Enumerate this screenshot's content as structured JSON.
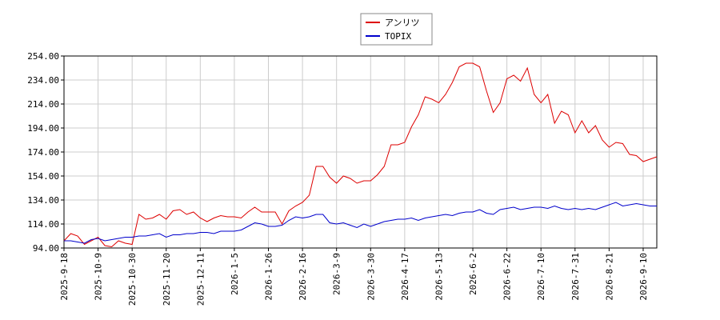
{
  "chart_data": {
    "type": "line",
    "categories": [
      "2025-9-18",
      null,
      null,
      null,
      null,
      "2025-10-9",
      null,
      null,
      null,
      null,
      "2025-10-30",
      null,
      null,
      null,
      null,
      "2025-11-20",
      null,
      null,
      null,
      null,
      "2025-12-11",
      null,
      null,
      null,
      null,
      "2026-1-5",
      null,
      null,
      null,
      null,
      "2026-1-26",
      null,
      null,
      null,
      null,
      "2026-2-16",
      null,
      null,
      null,
      null,
      "2026-3-9",
      null,
      null,
      null,
      null,
      "2026-3-30",
      null,
      null,
      null,
      null,
      "2026-4-17",
      null,
      null,
      null,
      null,
      "2026-5-13",
      null,
      null,
      null,
      null,
      "2026-6-2",
      null,
      null,
      null,
      null,
      "2026-6-22",
      null,
      null,
      null,
      null,
      "2026-7-10",
      null,
      null,
      null,
      null,
      "2026-7-31",
      null,
      null,
      null,
      null,
      "2026-8-21",
      null,
      null,
      null,
      null,
      "2026-9-10",
      null,
      null
    ],
    "series": [
      {
        "name": "アンリツ",
        "color": "#dd0000",
        "values": [
          100,
          106,
          104,
          97,
          100,
          103,
          96,
          95,
          100,
          98,
          97,
          122,
          118,
          119,
          122,
          118,
          125,
          126,
          122,
          124,
          119,
          116,
          119,
          121,
          120,
          120,
          119,
          124,
          128,
          124,
          124,
          124,
          114,
          125,
          129,
          132,
          138,
          162,
          162,
          153,
          148,
          154,
          152,
          148,
          150,
          150,
          155,
          162,
          180,
          180,
          182,
          195,
          205,
          220,
          218,
          215,
          222,
          232,
          245,
          248,
          248,
          245,
          225,
          207,
          215,
          235,
          238,
          233,
          244,
          222,
          215,
          222,
          198,
          208,
          205,
          190,
          200,
          190,
          196,
          184,
          178,
          182,
          181,
          172,
          171,
          166,
          168,
          170
        ]
      },
      {
        "name": "TOPIX",
        "color": "#0000cc",
        "values": [
          100,
          100,
          99,
          98,
          101,
          102,
          100,
          101,
          102,
          103,
          103,
          104,
          104,
          105,
          106,
          103,
          105,
          105,
          106,
          106,
          107,
          107,
          106,
          108,
          108,
          108,
          109,
          112,
          115,
          114,
          112,
          112,
          113,
          117,
          120,
          119,
          120,
          122,
          122,
          115,
          114,
          115,
          113,
          111,
          114,
          112,
          114,
          116,
          117,
          118,
          118,
          119,
          117,
          119,
          120,
          121,
          122,
          121,
          123,
          124,
          124,
          126,
          123,
          122,
          126,
          127,
          128,
          126,
          127,
          128,
          128,
          127,
          129,
          127,
          126,
          127,
          126,
          127,
          126,
          128,
          130,
          132,
          129,
          130,
          131,
          130,
          129,
          129
        ]
      }
    ],
    "ylim": [
      94,
      254
    ],
    "yticks": [
      {
        "value": 94,
        "label": "94.00"
      },
      {
        "value": 114,
        "label": "114.00"
      },
      {
        "value": 134,
        "label": "134.00"
      },
      {
        "value": 154,
        "label": "154.00"
      },
      {
        "value": 174,
        "label": "174.00"
      },
      {
        "value": 194,
        "label": "194.00"
      },
      {
        "value": 214,
        "label": "214.00"
      },
      {
        "value": 234,
        "label": "234.00"
      },
      {
        "value": 254,
        "label": "254.00"
      }
    ],
    "grid": true,
    "legend": "top"
  }
}
